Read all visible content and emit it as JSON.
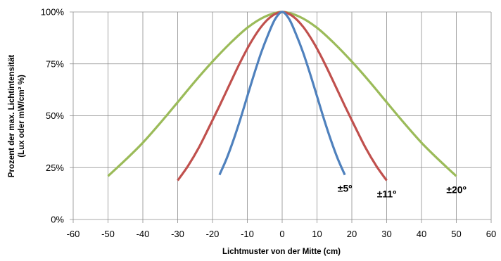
{
  "chart_data": {
    "type": "line",
    "xlabel": "Lichtmuster von der Mitte (cm)",
    "ylabel_lines": [
      "Prozent der max. Lichtintensität",
      "(Lux oder mW/cm² %)"
    ],
    "xlim": [
      -60,
      60
    ],
    "ylim": [
      0,
      100
    ],
    "x_ticks": [
      -60,
      -50,
      -40,
      -30,
      -20,
      -10,
      0,
      10,
      20,
      30,
      40,
      50,
      60
    ],
    "x_tick_labels": [
      "-60",
      "-50",
      "-40",
      "-30",
      "-20",
      "-10",
      "0",
      "10",
      "20",
      "30",
      "40",
      "50",
      "60"
    ],
    "y_ticks": [
      0,
      25,
      50,
      75,
      100
    ],
    "y_tick_labels": [
      "0%",
      "25%",
      "50%",
      "75%",
      "100%"
    ],
    "grid": true,
    "series": [
      {
        "name": "±20º",
        "color": "#9bbb59",
        "x": [
          -50,
          -45,
          -40,
          -35,
          -30,
          -25,
          -20,
          -15,
          -10,
          -5,
          0,
          5,
          10,
          15,
          20,
          25,
          30,
          35,
          40,
          45,
          50
        ],
        "y": [
          20.9,
          28.7,
          37.0,
          46.5,
          56.5,
          66.6,
          76.1,
          84.8,
          92.4,
          97.7,
          100,
          97.7,
          92.4,
          84.8,
          76.1,
          66.6,
          56.5,
          46.5,
          37.0,
          28.7,
          20.9
        ]
      },
      {
        "name": "±11º",
        "color": "#c0504d",
        "x": [
          -30,
          -27,
          -24,
          -21,
          -18,
          -15,
          -12,
          -9,
          -6,
          -3,
          0,
          3,
          6,
          9,
          12,
          15,
          18,
          21,
          24,
          27,
          30
        ],
        "y": [
          18.8,
          25.9,
          34.4,
          44.4,
          54.7,
          65.4,
          75.9,
          85.3,
          92.9,
          98.0,
          100,
          98.0,
          92.9,
          85.3,
          75.9,
          65.4,
          54.7,
          44.4,
          34.4,
          25.9,
          18.8
        ]
      },
      {
        "name": "±5º",
        "color": "#4f81bd",
        "x": [
          -18,
          -16,
          -14,
          -12,
          -10,
          -8,
          -6,
          -4,
          -2,
          0,
          2,
          4,
          6,
          8,
          10,
          12,
          14,
          16,
          18
        ],
        "y": [
          21.5,
          29.1,
          38.2,
          48.4,
          59.4,
          70.3,
          80.5,
          89.2,
          96.6,
          100,
          96.6,
          89.2,
          80.5,
          70.3,
          59.4,
          48.4,
          38.2,
          29.1,
          21.5
        ]
      }
    ],
    "annotations": [
      {
        "text": "±5º",
        "series": 2
      },
      {
        "text": "±11º",
        "series": 1
      },
      {
        "text": "±20º",
        "series": 0
      }
    ]
  }
}
